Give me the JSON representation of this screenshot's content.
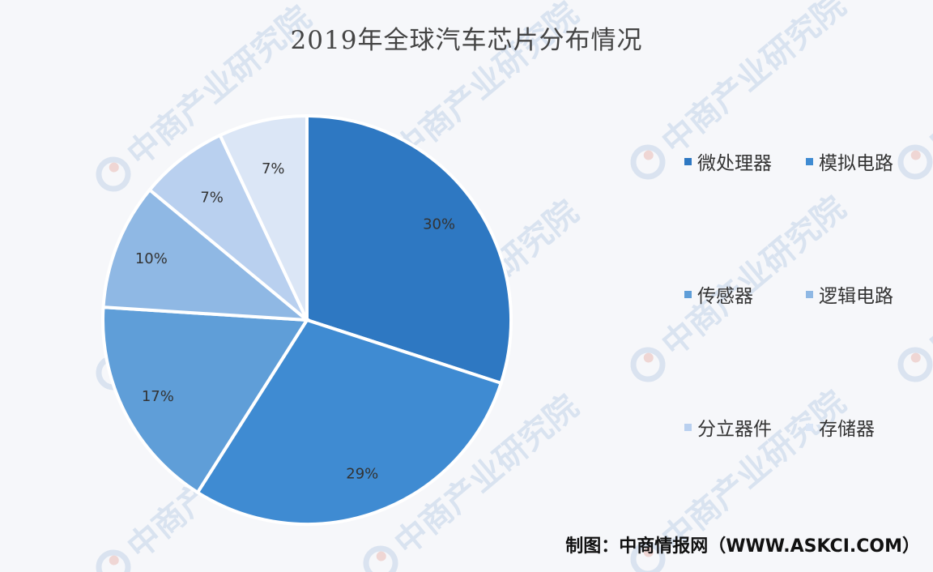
{
  "chart_data": {
    "type": "pie",
    "title": "2019年全球汽车芯片分布情况",
    "categories": [
      "微处理器",
      "模拟电路",
      "传感器",
      "逻辑电路",
      "分立器件",
      "存储器"
    ],
    "values": [
      30,
      29,
      17,
      10,
      7,
      7
    ],
    "data_labels": [
      "30%",
      "29%",
      "17%",
      "10%",
      "7%",
      "7%"
    ],
    "colors": [
      "#2e78c2",
      "#3f8bd2",
      "#5f9ed8",
      "#8fb8e4",
      "#b9d0ef",
      "#dbe6f6"
    ],
    "legend_position": "right",
    "start_angle": "12 o'clock",
    "direction": "clockwise"
  },
  "watermark": {
    "text": "中商产业研究院"
  },
  "source": "制图：中商情报网（WWW.ASKCI.COM）"
}
